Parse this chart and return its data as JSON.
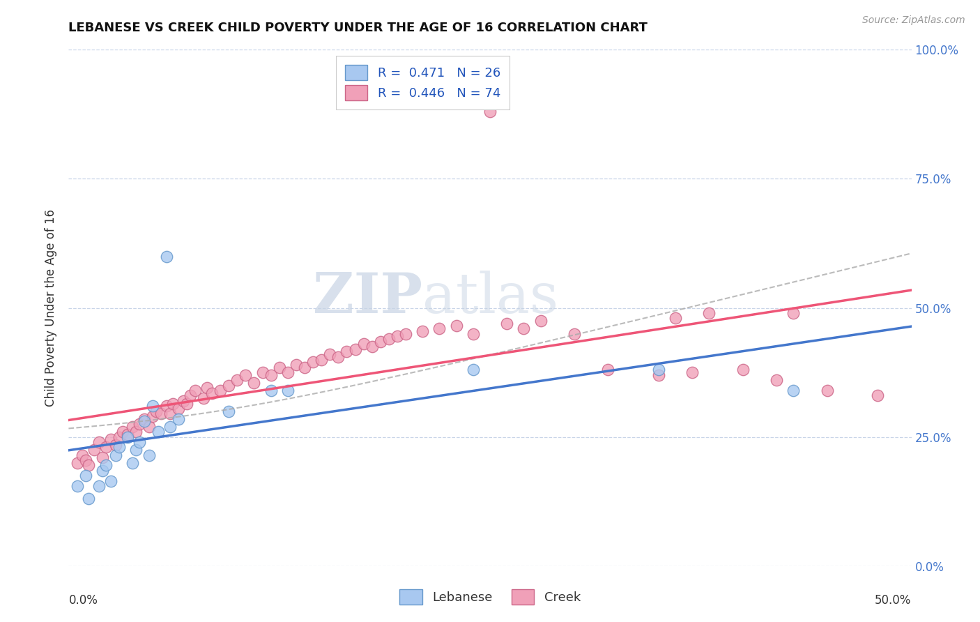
{
  "title": "LEBANESE VS CREEK CHILD POVERTY UNDER THE AGE OF 16 CORRELATION CHART",
  "source": "Source: ZipAtlas.com",
  "ylabel": "Child Poverty Under the Age of 16",
  "ytick_values": [
    0,
    0.25,
    0.5,
    0.75,
    1.0
  ],
  "xlim": [
    0,
    0.5
  ],
  "ylim": [
    0,
    1.0
  ],
  "legend_r_leb": "R =  0.471   N = 26",
  "legend_r_creek": "R =  0.446   N = 74",
  "watermark_zip": "ZIP",
  "watermark_atlas": "atlas",
  "background_color": "#ffffff",
  "grid_color": "#c8d4e8",
  "lebanese_fill_color": "#a8c8f0",
  "lebanese_edge_color": "#6699cc",
  "creek_fill_color": "#f0a0b8",
  "creek_edge_color": "#cc6688",
  "lebanese_line_color": "#4477cc",
  "creek_line_color": "#ee5577",
  "conf_line_color": "#aaaaaa",
  "lebanese_points": [
    [
      0.005,
      0.155
    ],
    [
      0.01,
      0.175
    ],
    [
      0.012,
      0.13
    ],
    [
      0.018,
      0.155
    ],
    [
      0.02,
      0.185
    ],
    [
      0.022,
      0.195
    ],
    [
      0.025,
      0.165
    ],
    [
      0.028,
      0.215
    ],
    [
      0.03,
      0.23
    ],
    [
      0.035,
      0.25
    ],
    [
      0.038,
      0.2
    ],
    [
      0.04,
      0.225
    ],
    [
      0.042,
      0.24
    ],
    [
      0.045,
      0.28
    ],
    [
      0.048,
      0.215
    ],
    [
      0.05,
      0.31
    ],
    [
      0.053,
      0.26
    ],
    [
      0.058,
      0.6
    ],
    [
      0.06,
      0.27
    ],
    [
      0.065,
      0.285
    ],
    [
      0.095,
      0.3
    ],
    [
      0.12,
      0.34
    ],
    [
      0.13,
      0.34
    ],
    [
      0.24,
      0.38
    ],
    [
      0.35,
      0.38
    ],
    [
      0.43,
      0.34
    ]
  ],
  "creek_points": [
    [
      0.005,
      0.2
    ],
    [
      0.008,
      0.215
    ],
    [
      0.01,
      0.205
    ],
    [
      0.012,
      0.195
    ],
    [
      0.015,
      0.225
    ],
    [
      0.018,
      0.24
    ],
    [
      0.02,
      0.21
    ],
    [
      0.022,
      0.23
    ],
    [
      0.025,
      0.245
    ],
    [
      0.028,
      0.235
    ],
    [
      0.03,
      0.25
    ],
    [
      0.032,
      0.26
    ],
    [
      0.035,
      0.255
    ],
    [
      0.038,
      0.27
    ],
    [
      0.04,
      0.26
    ],
    [
      0.042,
      0.275
    ],
    [
      0.045,
      0.285
    ],
    [
      0.048,
      0.27
    ],
    [
      0.05,
      0.29
    ],
    [
      0.052,
      0.3
    ],
    [
      0.055,
      0.295
    ],
    [
      0.058,
      0.31
    ],
    [
      0.06,
      0.295
    ],
    [
      0.062,
      0.315
    ],
    [
      0.065,
      0.305
    ],
    [
      0.068,
      0.32
    ],
    [
      0.07,
      0.315
    ],
    [
      0.072,
      0.33
    ],
    [
      0.075,
      0.34
    ],
    [
      0.08,
      0.325
    ],
    [
      0.082,
      0.345
    ],
    [
      0.085,
      0.335
    ],
    [
      0.09,
      0.34
    ],
    [
      0.095,
      0.35
    ],
    [
      0.1,
      0.36
    ],
    [
      0.105,
      0.37
    ],
    [
      0.11,
      0.355
    ],
    [
      0.115,
      0.375
    ],
    [
      0.12,
      0.37
    ],
    [
      0.125,
      0.385
    ],
    [
      0.13,
      0.375
    ],
    [
      0.135,
      0.39
    ],
    [
      0.14,
      0.385
    ],
    [
      0.145,
      0.395
    ],
    [
      0.15,
      0.4
    ],
    [
      0.155,
      0.41
    ],
    [
      0.16,
      0.405
    ],
    [
      0.165,
      0.415
    ],
    [
      0.17,
      0.42
    ],
    [
      0.175,
      0.43
    ],
    [
      0.18,
      0.425
    ],
    [
      0.185,
      0.435
    ],
    [
      0.19,
      0.44
    ],
    [
      0.195,
      0.445
    ],
    [
      0.2,
      0.45
    ],
    [
      0.21,
      0.455
    ],
    [
      0.22,
      0.46
    ],
    [
      0.23,
      0.465
    ],
    [
      0.24,
      0.45
    ],
    [
      0.25,
      0.88
    ],
    [
      0.26,
      0.47
    ],
    [
      0.27,
      0.46
    ],
    [
      0.28,
      0.475
    ],
    [
      0.3,
      0.45
    ],
    [
      0.32,
      0.38
    ],
    [
      0.35,
      0.37
    ],
    [
      0.36,
      0.48
    ],
    [
      0.37,
      0.375
    ],
    [
      0.38,
      0.49
    ],
    [
      0.4,
      0.38
    ],
    [
      0.42,
      0.36
    ],
    [
      0.43,
      0.49
    ],
    [
      0.45,
      0.34
    ],
    [
      0.48,
      0.33
    ]
  ]
}
